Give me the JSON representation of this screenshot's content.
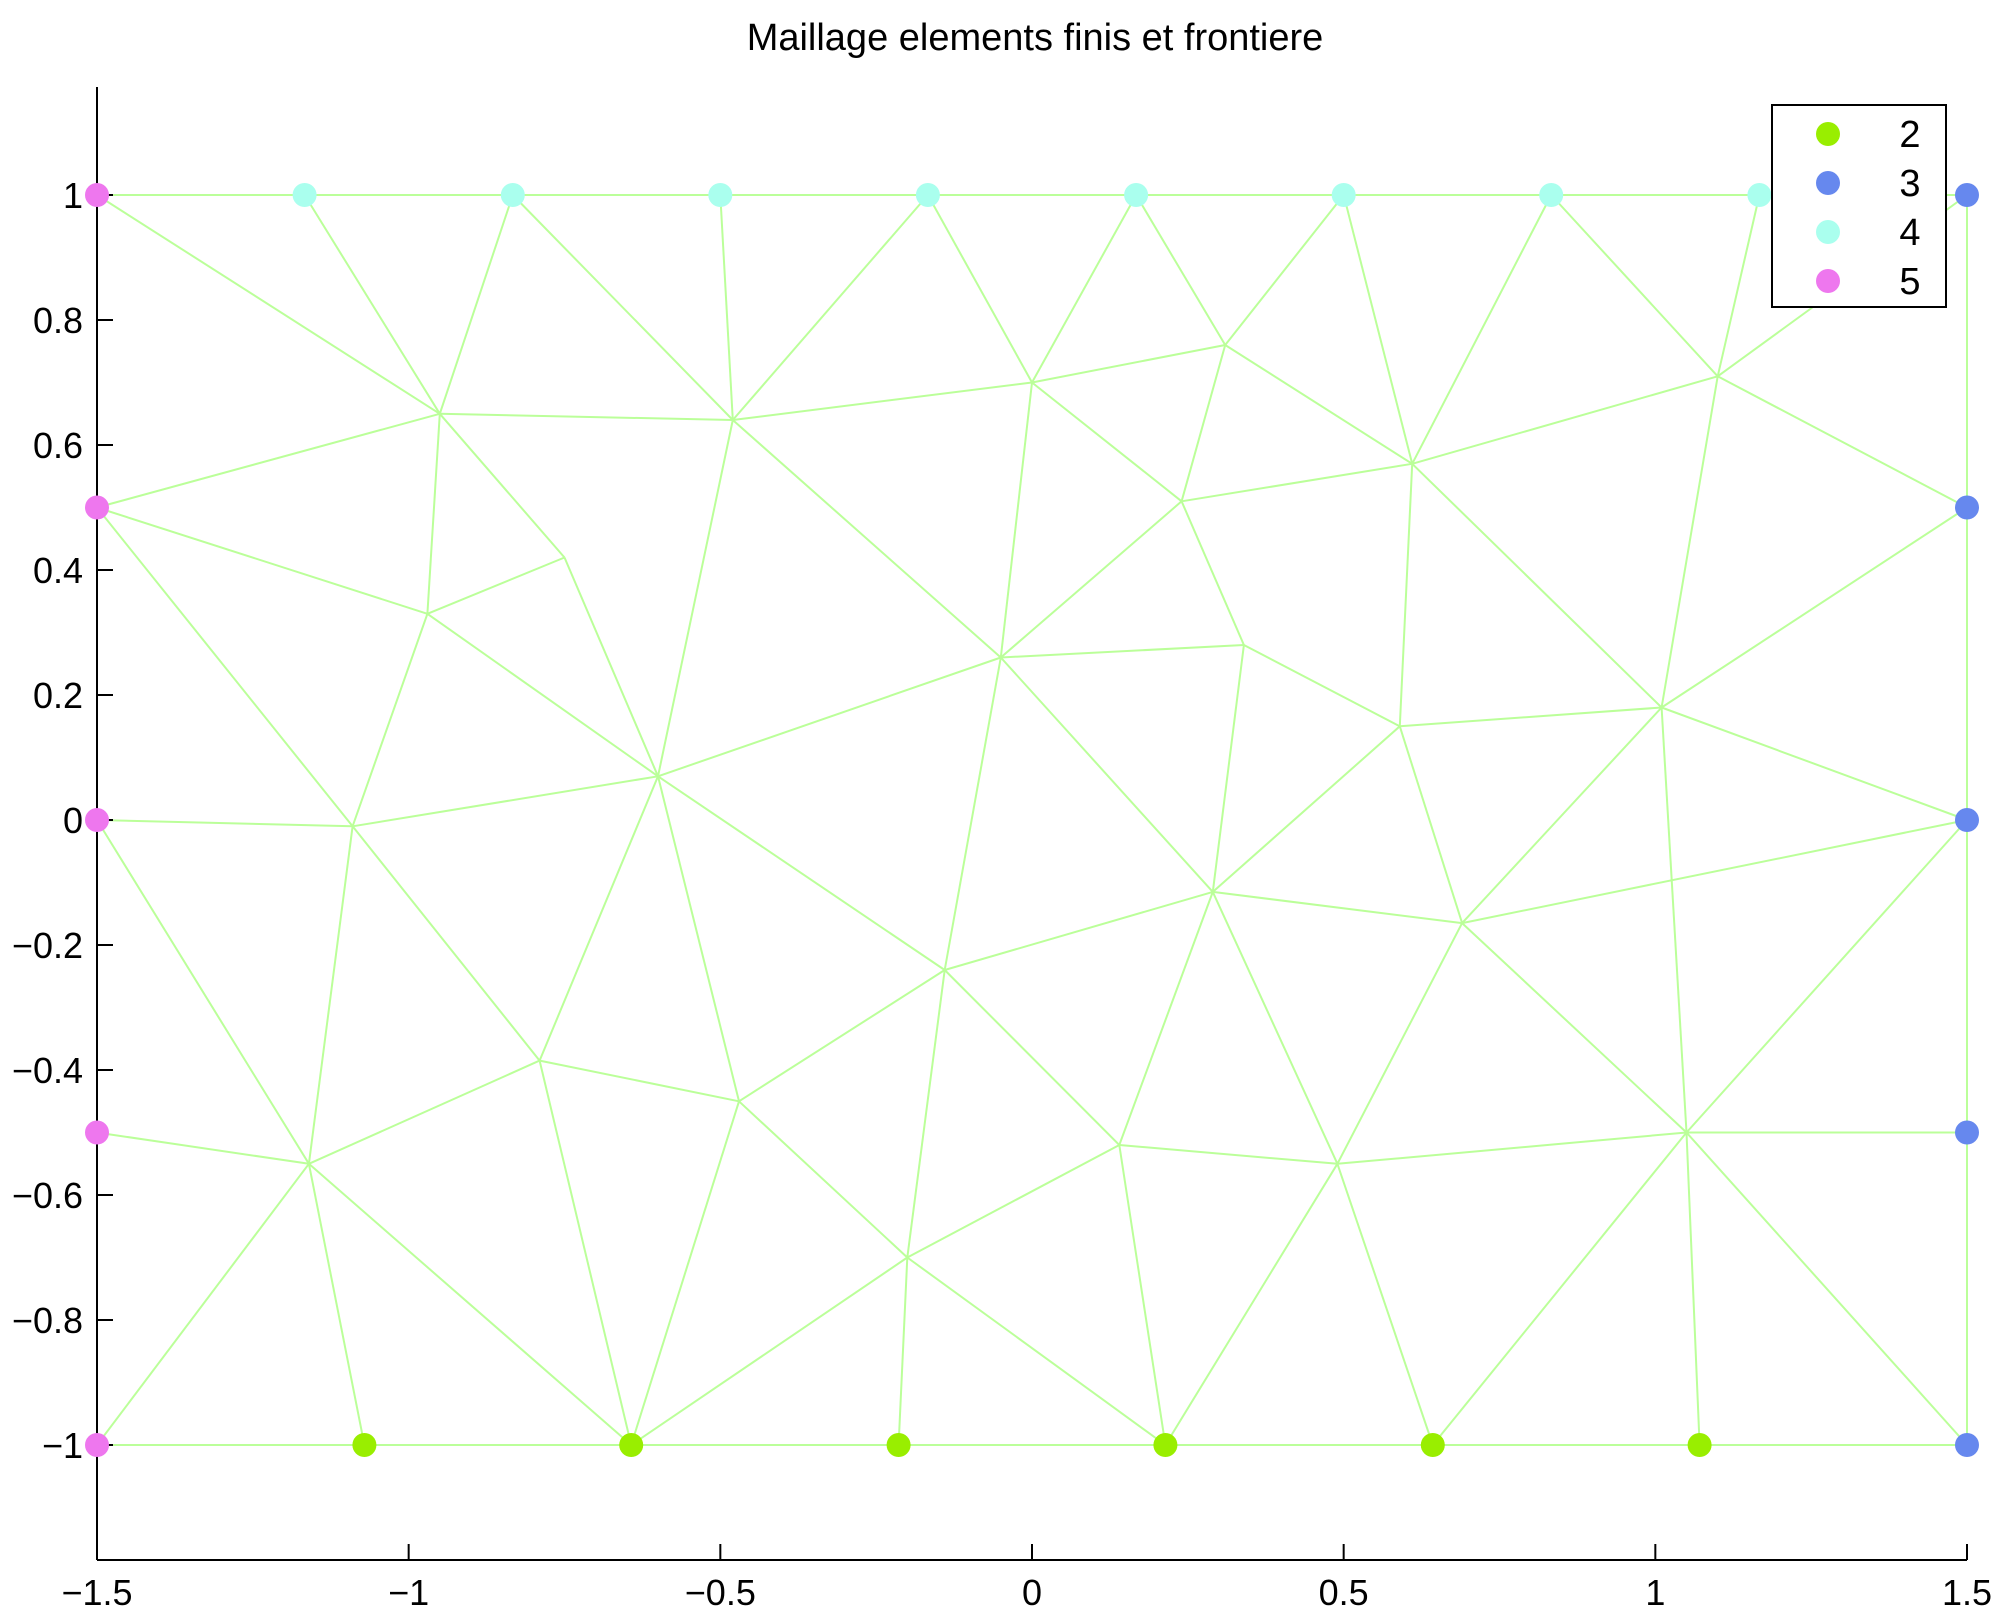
{
  "chart_data": {
    "type": "scatter",
    "title": "Maillage elements finis et frontiere",
    "xlabel": "",
    "ylabel": "",
    "xlim": [
      -1.5,
      1.5
    ],
    "ylim": [
      -1.18,
      1.18
    ],
    "xticks": [
      -1.5,
      -1,
      -0.5,
      0,
      0.5,
      1,
      1.5
    ],
    "xtick_labels": [
      "−1.5",
      "−1",
      "−0.5",
      "0",
      "0.5",
      "1",
      "1.5"
    ],
    "yticks": [
      -1,
      -0.8,
      -0.6,
      -0.4,
      -0.2,
      0,
      0.2,
      0.4,
      0.6,
      0.8,
      1
    ],
    "ytick_labels": [
      "−1",
      "−0.8",
      "−0.6",
      "−0.4",
      "−0.2",
      "0",
      "0.2",
      "0.4",
      "0.6",
      "0.8",
      "1"
    ],
    "grid": false,
    "legend_position": "top-right",
    "mesh_color": "#bbff99",
    "nodes": [
      [
        -1.5,
        -1
      ],
      [
        -1.071,
        -1
      ],
      [
        -0.643,
        -1
      ],
      [
        -0.214,
        -1
      ],
      [
        0.214,
        -1
      ],
      [
        0.643,
        -1
      ],
      [
        1.071,
        -1
      ],
      [
        1.5,
        -1
      ],
      [
        1.5,
        -0.5
      ],
      [
        1.5,
        0
      ],
      [
        1.5,
        0.5
      ],
      [
        1.5,
        1
      ],
      [
        1.167,
        1
      ],
      [
        0.833,
        1
      ],
      [
        0.5,
        1
      ],
      [
        0.167,
        1
      ],
      [
        -0.167,
        1
      ],
      [
        -0.5,
        1
      ],
      [
        -0.833,
        1
      ],
      [
        -1.167,
        1
      ],
      [
        -1.5,
        1
      ],
      [
        -1.5,
        0.5
      ],
      [
        -1.5,
        0
      ],
      [
        -1.5,
        -0.5
      ],
      [
        -1.16,
        -0.55
      ],
      [
        -0.79,
        -0.385
      ],
      [
        -0.47,
        -0.45
      ],
      [
        -0.14,
        -0.24
      ],
      [
        -0.6,
        0.07
      ],
      [
        -1.09,
        -0.01
      ],
      [
        -0.95,
        0.65
      ],
      [
        -0.97,
        0.33
      ],
      [
        -0.75,
        0.42
      ],
      [
        -0.48,
        0.64
      ],
      [
        0.0,
        0.7
      ],
      [
        0.31,
        0.76
      ],
      [
        0.24,
        0.51
      ],
      [
        0.34,
        0.28
      ],
      [
        -0.05,
        0.26
      ],
      [
        0.61,
        0.57
      ],
      [
        0.59,
        0.15
      ],
      [
        1.1,
        0.71
      ],
      [
        1.01,
        0.18
      ],
      [
        0.29,
        -0.115
      ],
      [
        0.69,
        -0.165
      ],
      [
        -0.2,
        -0.7
      ],
      [
        0.14,
        -0.52
      ],
      [
        0.49,
        -0.55
      ],
      [
        1.05,
        -0.5
      ]
    ],
    "edges": [
      [
        0,
        1
      ],
      [
        1,
        2
      ],
      [
        2,
        3
      ],
      [
        3,
        4
      ],
      [
        4,
        5
      ],
      [
        5,
        6
      ],
      [
        6,
        7
      ],
      [
        7,
        8
      ],
      [
        8,
        9
      ],
      [
        9,
        10
      ],
      [
        10,
        11
      ],
      [
        11,
        12
      ],
      [
        12,
        13
      ],
      [
        13,
        14
      ],
      [
        14,
        15
      ],
      [
        15,
        16
      ],
      [
        16,
        17
      ],
      [
        17,
        18
      ],
      [
        18,
        19
      ],
      [
        19,
        20
      ],
      [
        20,
        21
      ],
      [
        21,
        22
      ],
      [
        22,
        23
      ],
      [
        23,
        0
      ],
      [
        0,
        24
      ],
      [
        23,
        24
      ],
      [
        22,
        24
      ],
      [
        1,
        24
      ],
      [
        2,
        24
      ],
      [
        24,
        25
      ],
      [
        2,
        25
      ],
      [
        2,
        26
      ],
      [
        25,
        26
      ],
      [
        2,
        45
      ],
      [
        26,
        45
      ],
      [
        3,
        45
      ],
      [
        4,
        45
      ],
      [
        26,
        27
      ],
      [
        25,
        28
      ],
      [
        26,
        28
      ],
      [
        27,
        28
      ],
      [
        22,
        29
      ],
      [
        28,
        29
      ],
      [
        24,
        29
      ],
      [
        25,
        29
      ],
      [
        20,
        30
      ],
      [
        19,
        30
      ],
      [
        18,
        30
      ],
      [
        21,
        30
      ],
      [
        21,
        31
      ],
      [
        30,
        31
      ],
      [
        31,
        32
      ],
      [
        30,
        32
      ],
      [
        32,
        28
      ],
      [
        21,
        29
      ],
      [
        29,
        31
      ],
      [
        31,
        28
      ],
      [
        30,
        33
      ],
      [
        18,
        33
      ],
      [
        17,
        33
      ],
      [
        16,
        33
      ],
      [
        33,
        28
      ],
      [
        16,
        34
      ],
      [
        15,
        34
      ],
      [
        33,
        34
      ],
      [
        15,
        35
      ],
      [
        14,
        35
      ],
      [
        34,
        35
      ],
      [
        34,
        36
      ],
      [
        35,
        36
      ],
      [
        36,
        37
      ],
      [
        33,
        38
      ],
      [
        34,
        38
      ],
      [
        38,
        36
      ],
      [
        38,
        37
      ],
      [
        38,
        28
      ],
      [
        14,
        39
      ],
      [
        13,
        39
      ],
      [
        35,
        39
      ],
      [
        36,
        39
      ],
      [
        37,
        40
      ],
      [
        39,
        40
      ],
      [
        39,
        41
      ],
      [
        13,
        41
      ],
      [
        12,
        41
      ],
      [
        11,
        41
      ],
      [
        41,
        10
      ],
      [
        39,
        42
      ],
      [
        41,
        42
      ],
      [
        10,
        42
      ],
      [
        40,
        42
      ],
      [
        9,
        42
      ],
      [
        38,
        43
      ],
      [
        37,
        43
      ],
      [
        40,
        43
      ],
      [
        27,
        43
      ],
      [
        38,
        27
      ],
      [
        40,
        44
      ],
      [
        42,
        44
      ],
      [
        43,
        44
      ],
      [
        27,
        46
      ],
      [
        43,
        46
      ],
      [
        27,
        45
      ],
      [
        45,
        46
      ],
      [
        4,
        46
      ],
      [
        43,
        47
      ],
      [
        46,
        47
      ],
      [
        44,
        47
      ],
      [
        4,
        47
      ],
      [
        5,
        47
      ],
      [
        42,
        48
      ],
      [
        44,
        48
      ],
      [
        47,
        48
      ],
      [
        5,
        48
      ],
      [
        6,
        48
      ],
      [
        7,
        48
      ],
      [
        8,
        48
      ],
      [
        9,
        48
      ],
      [
        9,
        44
      ]
    ],
    "series": [
      {
        "name": "2",
        "color": "#99ee00",
        "points": [
          [
            -1.071,
            -1
          ],
          [
            -0.643,
            -1
          ],
          [
            -0.214,
            -1
          ],
          [
            0.214,
            -1
          ],
          [
            0.643,
            -1
          ],
          [
            1.071,
            -1
          ]
        ]
      },
      {
        "name": "3",
        "color": "#6688ee",
        "points": [
          [
            1.5,
            -1
          ],
          [
            1.5,
            -0.5
          ],
          [
            1.5,
            0
          ],
          [
            1.5,
            0.5
          ],
          [
            1.5,
            1
          ]
        ]
      },
      {
        "name": "4",
        "color": "#aaffee",
        "points": [
          [
            -1.167,
            1
          ],
          [
            -0.833,
            1
          ],
          [
            -0.5,
            1
          ],
          [
            -0.167,
            1
          ],
          [
            0.167,
            1
          ],
          [
            0.5,
            1
          ],
          [
            0.833,
            1
          ],
          [
            1.167,
            1
          ]
        ]
      },
      {
        "name": "5",
        "color": "#ee77ee",
        "points": [
          [
            -1.5,
            1
          ],
          [
            -1.5,
            0.5
          ],
          [
            -1.5,
            0
          ],
          [
            -1.5,
            -0.5
          ],
          [
            -1.5,
            -1
          ]
        ]
      }
    ]
  }
}
